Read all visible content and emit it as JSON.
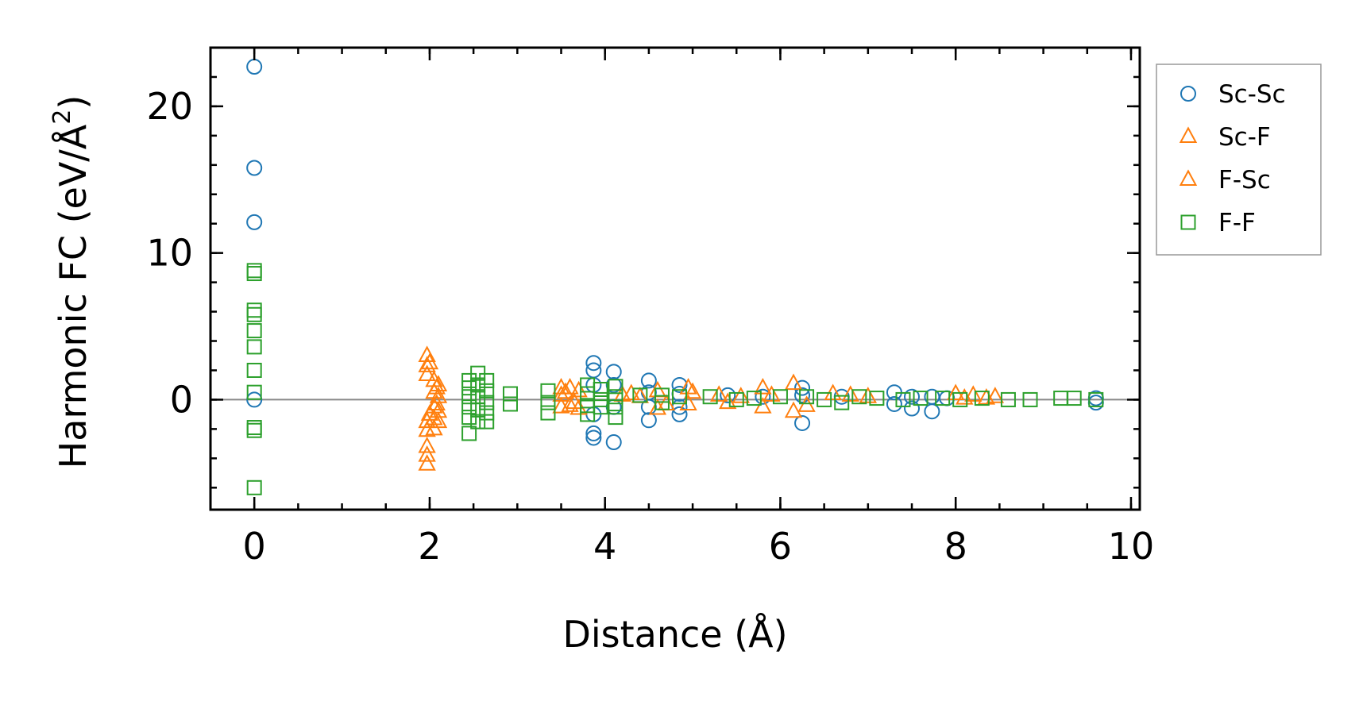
{
  "chart_data": {
    "type": "scatter",
    "title": "",
    "xlabel": "Distance (Å)",
    "ylabel_main": "Harmonic FC (eV/Å",
    "ylabel_sup": "2",
    "ylabel_close": ")",
    "xlim": [
      -0.5,
      10.1
    ],
    "ylim": [
      -7.5,
      24
    ],
    "x_ticks": [
      0,
      2,
      4,
      6,
      8,
      10
    ],
    "x_tick_labels": [
      "0",
      "2",
      "4",
      "6",
      "8",
      "10"
    ],
    "y_ticks": [
      0,
      10,
      20
    ],
    "y_tick_labels": [
      "0",
      "10",
      "20"
    ],
    "x_minor_step": 0.5,
    "y_minor_step": 2,
    "zero_line": true,
    "grid": false,
    "legend_position": "outside-right",
    "series": [
      {
        "name": "Sc-Sc",
        "marker": "circle",
        "color": "#1f77b4",
        "points": [
          [
            0,
            22.7
          ],
          [
            0,
            15.8
          ],
          [
            0,
            12.1
          ],
          [
            0,
            0
          ],
          [
            3.87,
            2.5
          ],
          [
            3.87,
            2.0
          ],
          [
            3.87,
            1.0
          ],
          [
            3.87,
            -1.0
          ],
          [
            3.87,
            -2.3
          ],
          [
            3.87,
            -2.6
          ],
          [
            4.1,
            1.9
          ],
          [
            4.1,
            1.0
          ],
          [
            4.1,
            -0.5
          ],
          [
            4.1,
            -2.9
          ],
          [
            4.5,
            1.3
          ],
          [
            4.5,
            0.5
          ],
          [
            4.5,
            -0.5
          ],
          [
            4.5,
            -1.4
          ],
          [
            4.85,
            1.0
          ],
          [
            4.85,
            0.4
          ],
          [
            4.85,
            -0.5
          ],
          [
            4.85,
            -1.0
          ],
          [
            5.4,
            0.3
          ],
          [
            5.8,
            0.2
          ],
          [
            6.25,
            0.8
          ],
          [
            6.25,
            0.3
          ],
          [
            6.25,
            -1.6
          ],
          [
            6.7,
            0.2
          ],
          [
            7.3,
            0.5
          ],
          [
            7.3,
            -0.3
          ],
          [
            7.5,
            0.2
          ],
          [
            7.5,
            -0.6
          ],
          [
            7.73,
            0.2
          ],
          [
            7.73,
            -0.8
          ],
          [
            7.9,
            0.1
          ],
          [
            9.6,
            0.1
          ],
          [
            9.6,
            -0.2
          ]
        ]
      },
      {
        "name": "Sc-F",
        "marker": "triangle",
        "color": "#ff7f0e",
        "points": [
          [
            1.97,
            3.0
          ],
          [
            1.97,
            2.3
          ],
          [
            1.97,
            1.7
          ],
          [
            1.97,
            -1.5
          ],
          [
            1.97,
            -2.1
          ],
          [
            1.97,
            -3.2
          ],
          [
            1.97,
            -3.8
          ],
          [
            1.97,
            -4.4
          ],
          [
            2.05,
            1.3
          ],
          [
            2.05,
            0.5
          ],
          [
            2.05,
            -0.5
          ],
          [
            2.05,
            -1.3
          ],
          [
            2.05,
            -2.0
          ],
          [
            2.1,
            1.0
          ],
          [
            2.1,
            0.2
          ],
          [
            2.1,
            -0.8
          ],
          [
            2.1,
            -1.5
          ],
          [
            3.5,
            0.8
          ],
          [
            3.5,
            0.3
          ],
          [
            3.5,
            -0.5
          ],
          [
            3.6,
            0.8
          ],
          [
            3.6,
            -0.4
          ],
          [
            3.7,
            0.6
          ],
          [
            3.7,
            -0.6
          ],
          [
            4.2,
            0.3
          ],
          [
            4.4,
            0.2
          ],
          [
            4.6,
            0.6
          ],
          [
            4.6,
            -0.6
          ],
          [
            4.95,
            0.8
          ],
          [
            4.95,
            -0.3
          ],
          [
            5.3,
            0.3
          ],
          [
            5.55,
            0.2
          ],
          [
            5.8,
            0.8
          ],
          [
            5.8,
            -0.5
          ],
          [
            6.15,
            1.1
          ],
          [
            6.15,
            -0.8
          ],
          [
            6.6,
            0.4
          ],
          [
            7.0,
            0.2
          ],
          [
            8.0,
            0.4
          ],
          [
            8.2,
            0.3
          ],
          [
            8.35,
            0.1
          ],
          [
            8.45,
            0.2
          ]
        ]
      },
      {
        "name": "F-Sc",
        "marker": "triangle",
        "color": "#ff7f0e",
        "points": [
          [
            2.0,
            2.5
          ],
          [
            2.0,
            -1.0
          ],
          [
            2.08,
            0.8
          ],
          [
            2.08,
            -0.3
          ],
          [
            3.55,
            0.5
          ],
          [
            3.65,
            -0.2
          ],
          [
            4.3,
            0.4
          ],
          [
            4.7,
            -0.3
          ],
          [
            5.0,
            0.5
          ],
          [
            5.4,
            -0.2
          ],
          [
            5.9,
            0.3
          ],
          [
            6.3,
            -0.4
          ],
          [
            6.8,
            0.3
          ],
          [
            8.1,
            0.1
          ]
        ]
      },
      {
        "name": "F-F",
        "marker": "square",
        "color": "#2ca02c",
        "points": [
          [
            0,
            8.8
          ],
          [
            0,
            8.6
          ],
          [
            0,
            6.1
          ],
          [
            0,
            5.8
          ],
          [
            0,
            4.7
          ],
          [
            0,
            3.6
          ],
          [
            0,
            2.0
          ],
          [
            0,
            0.5
          ],
          [
            0,
            -1.9
          ],
          [
            0,
            -2.1
          ],
          [
            0,
            -6.0
          ],
          [
            2.45,
            1.3
          ],
          [
            2.45,
            0.8
          ],
          [
            2.45,
            0.2
          ],
          [
            2.45,
            -0.5
          ],
          [
            2.45,
            -1.2
          ],
          [
            2.45,
            -2.3
          ],
          [
            2.55,
            1.8
          ],
          [
            2.55,
            1.0
          ],
          [
            2.55,
            0.2
          ],
          [
            2.55,
            -0.7
          ],
          [
            2.55,
            -1.5
          ],
          [
            2.65,
            1.3
          ],
          [
            2.65,
            0.6
          ],
          [
            2.65,
            -0.2
          ],
          [
            2.65,
            -0.9
          ],
          [
            2.65,
            -1.5
          ],
          [
            2.92,
            0.4
          ],
          [
            2.92,
            -0.3
          ],
          [
            3.35,
            0.6
          ],
          [
            3.35,
            -0.2
          ],
          [
            3.35,
            -0.9
          ],
          [
            3.8,
            1.0
          ],
          [
            3.8,
            0.4
          ],
          [
            3.8,
            -0.4
          ],
          [
            3.8,
            -1.0
          ],
          [
            3.95,
            0.7
          ],
          [
            3.95,
            0
          ],
          [
            3.95,
            -0.5
          ],
          [
            4.12,
            0.9
          ],
          [
            4.12,
            0.2
          ],
          [
            4.12,
            -0.5
          ],
          [
            4.12,
            -1.2
          ],
          [
            4.4,
            0.3
          ],
          [
            4.65,
            0.3
          ],
          [
            4.65,
            -0.2
          ],
          [
            4.85,
            0.2
          ],
          [
            5.2,
            0.2
          ],
          [
            5.5,
            0
          ],
          [
            5.7,
            0.1
          ],
          [
            6.0,
            0.2
          ],
          [
            6.3,
            0.2
          ],
          [
            6.5,
            0
          ],
          [
            6.7,
            -0.2
          ],
          [
            6.9,
            0.2
          ],
          [
            7.1,
            0.1
          ],
          [
            7.4,
            0
          ],
          [
            7.6,
            0.1
          ],
          [
            7.85,
            0.1
          ],
          [
            8.05,
            0
          ],
          [
            8.3,
            0.1
          ],
          [
            8.6,
            0
          ],
          [
            8.85,
            0
          ],
          [
            9.2,
            0.1
          ],
          [
            9.35,
            0.1
          ],
          [
            9.6,
            0
          ]
        ]
      }
    ]
  }
}
